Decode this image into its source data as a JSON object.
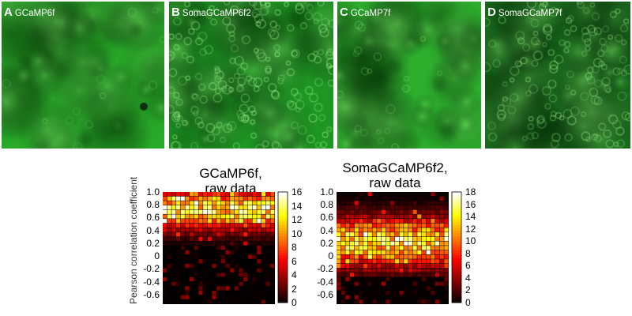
{
  "panels": [
    {
      "letter": "A",
      "name": "GCaMP6f"
    },
    {
      "letter": "B",
      "name": "SomaGCaMP6f2"
    },
    {
      "letter": "C",
      "name": "GCaMP7f"
    },
    {
      "letter": "D",
      "name": "SomaGCaMP7f"
    }
  ],
  "chart_data": [
    {
      "type": "heatmap",
      "title": "GCaMP6f,\nraw data",
      "ylabel": "Pearson correlation coefficient",
      "yticks": [
        "1.0",
        "0.8",
        "0.6",
        "0.4",
        "0.2",
        "0",
        "-0.2",
        "-0.4",
        "-0.6"
      ],
      "ylim": [
        -0.75,
        1.0
      ],
      "colorbar_ticks": [
        "16",
        "14",
        "12",
        "10",
        "8",
        "6",
        "4",
        "2",
        "0"
      ],
      "colorbar_max": 16,
      "peak_correlation": 0.75
    },
    {
      "type": "heatmap",
      "title": "SomaGCaMP6f2,\nraw data",
      "ylabel": "",
      "yticks": [
        "1.0",
        "0.8",
        "0.6",
        "0.4",
        "0.2",
        "0",
        "-0.2",
        "-0.4",
        "-0.6"
      ],
      "ylim": [
        -0.75,
        1.0
      ],
      "colorbar_ticks": [
        "18",
        "16",
        "14",
        "12",
        "10",
        "8",
        "6",
        "4",
        "2",
        "0"
      ],
      "colorbar_max": 18,
      "peak_correlation": 0.25
    }
  ]
}
